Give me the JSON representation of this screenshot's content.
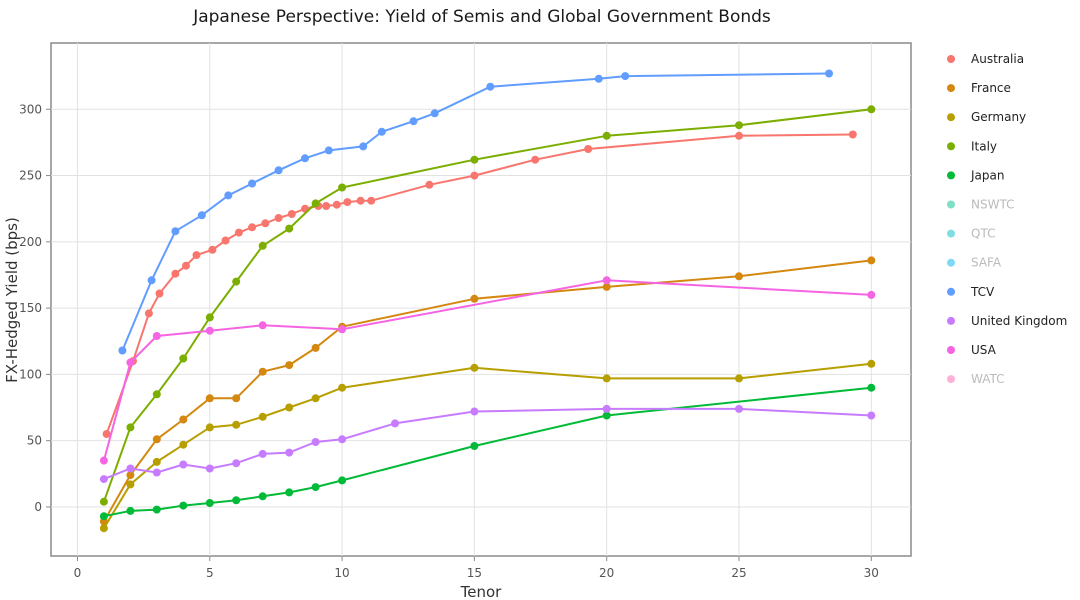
{
  "chart_data": {
    "type": "line",
    "title": "Japanese Perspective: Yield of Semis and Global Government Bonds",
    "xlabel": "Tenor",
    "ylabel": "FX-Hedged Yield (bps)",
    "xlim": [
      -1,
      31.5
    ],
    "ylim": [
      -37,
      350
    ],
    "xticks": [
      0,
      5,
      10,
      15,
      20,
      25,
      30
    ],
    "yticks": [
      0,
      50,
      100,
      150,
      200,
      250,
      300
    ],
    "xtick_labels": [
      "0",
      "5",
      "10",
      "15",
      "20",
      "25",
      "30"
    ],
    "ytick_labels": [
      "0",
      "50",
      "100",
      "150",
      "200",
      "250",
      "300"
    ],
    "grid": true,
    "legend_position": "right",
    "series": [
      {
        "name": "Australia",
        "color": "#F8766D",
        "visible": true,
        "x": [
          1.1,
          2.1,
          2.7,
          3.1,
          3.7,
          4.1,
          4.5,
          5.1,
          5.6,
          6.1,
          6.6,
          7.1,
          7.6,
          8.1,
          8.6,
          9.1,
          9.4,
          9.8,
          10.2,
          10.7,
          11.1,
          13.3,
          15.0,
          17.3,
          19.3,
          25.0,
          29.3
        ],
        "y": [
          55,
          110,
          146,
          161,
          176,
          182,
          190,
          194,
          201,
          207,
          211,
          214,
          218,
          221,
          225,
          227,
          227,
          228,
          230,
          231,
          231,
          243,
          250,
          262,
          270,
          280,
          281
        ]
      },
      {
        "name": "France",
        "color": "#D4880F",
        "visible": true,
        "x": [
          1,
          2,
          3,
          4,
          5,
          6,
          7,
          8,
          9,
          10,
          15,
          20,
          25,
          30
        ],
        "y": [
          -11,
          24,
          51,
          66,
          82,
          82,
          102,
          107,
          120,
          136,
          157,
          166,
          174,
          186
        ]
      },
      {
        "name": "Germany",
        "color": "#B79F00",
        "visible": true,
        "x": [
          1,
          2,
          3,
          4,
          5,
          6,
          7,
          8,
          9,
          10,
          15,
          20,
          25,
          30
        ],
        "y": [
          -16,
          17,
          34,
          47,
          60,
          62,
          68,
          75,
          82,
          90,
          105,
          97,
          97,
          108
        ]
      },
      {
        "name": "Italy",
        "color": "#7CAE00",
        "visible": true,
        "x": [
          1,
          2,
          3,
          4,
          5,
          6,
          7,
          8,
          9,
          10,
          15,
          20,
          25,
          30
        ],
        "y": [
          4,
          60,
          85,
          112,
          143,
          170,
          197,
          210,
          229,
          241,
          262,
          280,
          288,
          300
        ]
      },
      {
        "name": "Japan",
        "color": "#00BA38",
        "visible": true,
        "x": [
          1,
          2,
          3,
          4,
          5,
          6,
          7,
          8,
          9,
          10,
          15,
          20,
          30
        ],
        "y": [
          -7,
          -3,
          -2,
          1,
          3,
          5,
          8,
          11,
          15,
          20,
          46,
          69,
          90
        ]
      },
      {
        "name": "NSWTC",
        "color": "#00C08B",
        "visible": false,
        "x": [],
        "y": []
      },
      {
        "name": "QTC",
        "color": "#00BFC4",
        "visible": false,
        "x": [],
        "y": []
      },
      {
        "name": "SAFA",
        "color": "#00B4F0",
        "visible": false,
        "x": [],
        "y": []
      },
      {
        "name": "TCV",
        "color": "#619CFF",
        "visible": true,
        "x": [
          1.7,
          2.8,
          3.7,
          4.7,
          5.7,
          6.6,
          7.6,
          8.6,
          9.5,
          10.8,
          11.5,
          12.7,
          13.5,
          15.6,
          19.7,
          20.7,
          28.4
        ],
        "y": [
          118,
          171,
          208,
          220,
          235,
          244,
          254,
          263,
          269,
          272,
          283,
          291,
          297,
          317,
          323,
          325,
          327
        ]
      },
      {
        "name": "United Kingdom",
        "color": "#C77CFF",
        "visible": true,
        "x": [
          1,
          2,
          3,
          4,
          5,
          6,
          7,
          8,
          9,
          10,
          12,
          15,
          20,
          25,
          30
        ],
        "y": [
          21,
          29,
          26,
          32,
          29,
          33,
          40,
          41,
          49,
          51,
          63,
          72,
          74,
          74,
          69
        ]
      },
      {
        "name": "USA",
        "color": "#F564E3",
        "visible": true,
        "x": [
          1,
          2,
          3,
          5,
          7,
          10,
          20,
          30
        ],
        "y": [
          35,
          109,
          129,
          133,
          137,
          134,
          171,
          160
        ]
      },
      {
        "name": "WATC",
        "color": "#FF64B0",
        "visible": false,
        "x": [],
        "y": []
      }
    ]
  }
}
